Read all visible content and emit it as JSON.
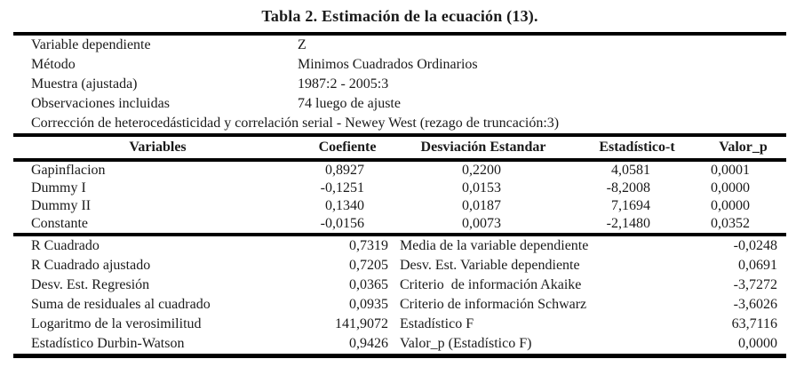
{
  "title": "Tabla 2. Estimación de la ecuación (13).",
  "info": {
    "rows": [
      {
        "label": "Variable dependiente",
        "value": "Z"
      },
      {
        "label": "Método",
        "value": "Minimos Cuadrados Ordinarios"
      },
      {
        "label": "Muestra (ajustada)",
        "value": "1987:2 - 2005:3"
      },
      {
        "label": "Observaciones incluidas",
        "value": "74 luego de ajuste"
      }
    ],
    "note": "Corrección de heterocedásticidad y correlación serial - Newey West (rezago de truncación:3)"
  },
  "coef_table": {
    "headers": [
      "Variables",
      "Coefiente",
      "Desviación Estandar",
      "Estadístico-t",
      "Valor_p"
    ],
    "rows": [
      {
        "variable": "Gapinflacion",
        "coef": "0,8927",
        "std": "0,2200",
        "t": "4,0581",
        "p": "0,0001"
      },
      {
        "variable": "Dummy I",
        "coef": "-0,1251",
        "std": "0,0153",
        "t": "-8,2008",
        "p": "0,0000"
      },
      {
        "variable": "Dummy II",
        "coef": "0,1340",
        "std": "0,0187",
        "t": "7,1694",
        "p": "0,0000"
      },
      {
        "variable": "Constante",
        "coef": "-0,0156",
        "std": "0,0073",
        "t": "-2,1480",
        "p": "0,0352"
      }
    ]
  },
  "summary": {
    "rows": [
      {
        "label_left": "R Cuadrado",
        "value_left": "0,7319",
        "label_right": "Media de la variable dependiente",
        "value_right": "-0,0248"
      },
      {
        "label_left": "R Cuadrado ajustado",
        "value_left": "0,7205",
        "label_right": "Desv. Est. Variable dependiente",
        "value_right": "0,0691"
      },
      {
        "label_left": "Desv. Est. Regresión",
        "value_left": "0,0365",
        "label_right": "Criterio  de información Akaike",
        "value_right": "-3,7272"
      },
      {
        "label_left": "Suma de residuales al cuadrado",
        "value_left": "0,0935",
        "label_right": "Criterio de información Schwarz",
        "value_right": "-3,6026"
      },
      {
        "label_left": "Logaritmo de la verosimilitud",
        "value_left": "141,9072",
        "label_right": "Estadístico F",
        "value_right": "63,7116"
      },
      {
        "label_left": "Estadístico Durbin-Watson",
        "value_left": "0,9426",
        "label_right": "Valor_p (Estadístico F)",
        "value_right": "0,0000"
      }
    ]
  },
  "colors": {
    "text": "#1a1a1a",
    "rule": "#000000",
    "background": "#ffffff"
  }
}
